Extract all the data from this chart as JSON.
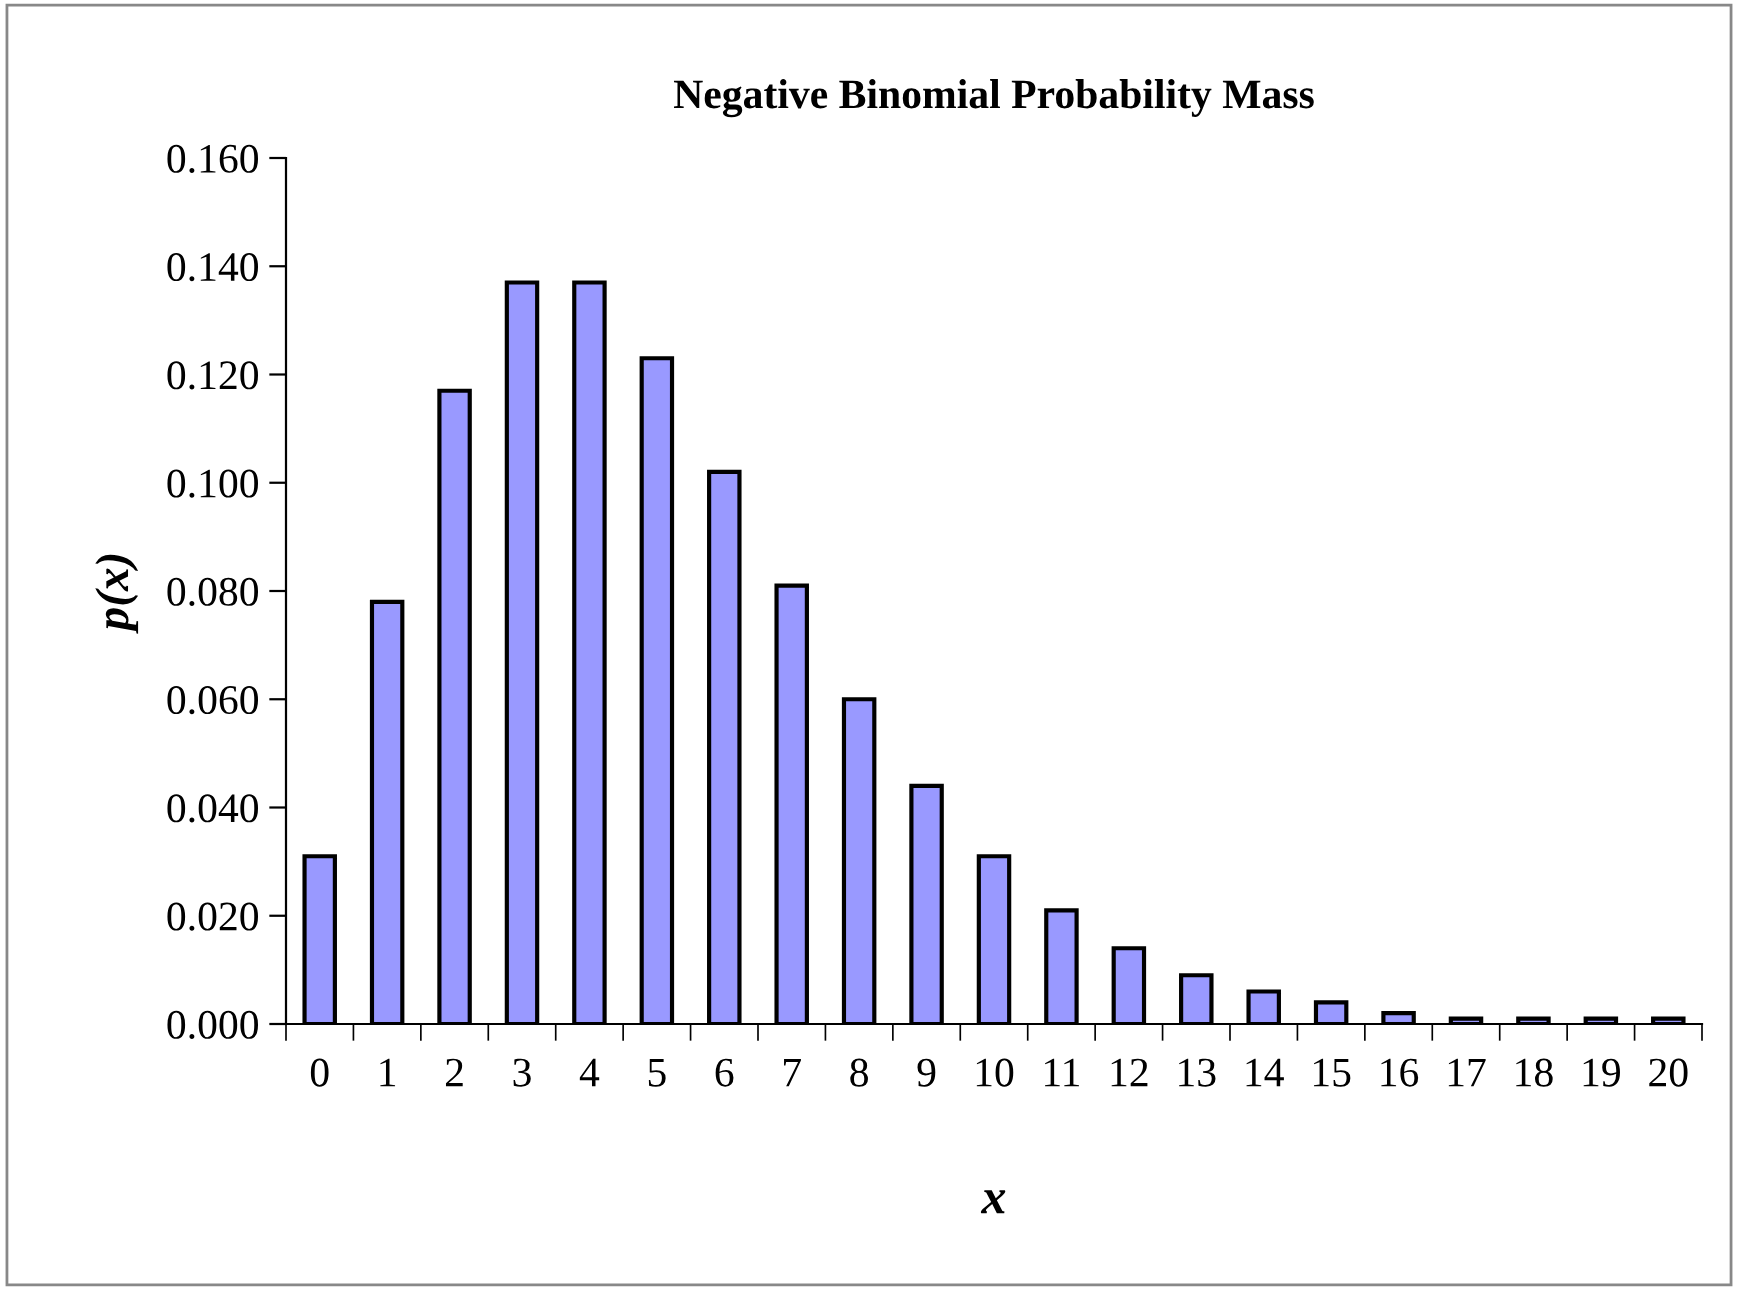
{
  "chart_data": {
    "type": "bar",
    "title": "Negative Binomial Probability Mass",
    "xlabel": "x",
    "ylabel": "p(x)",
    "categories": [
      "0",
      "1",
      "2",
      "3",
      "4",
      "5",
      "6",
      "7",
      "8",
      "9",
      "10",
      "11",
      "12",
      "13",
      "14",
      "15",
      "16",
      "17",
      "18",
      "19",
      "20"
    ],
    "values": [
      0.031,
      0.078,
      0.117,
      0.137,
      0.137,
      0.123,
      0.102,
      0.081,
      0.06,
      0.044,
      0.031,
      0.021,
      0.014,
      0.009,
      0.006,
      0.004,
      0.002,
      0.001,
      0.001,
      0.001,
      0.001
    ],
    "color": "#9999ff",
    "ylim": [
      0,
      0.16
    ],
    "yticks": [
      {
        "value": 0,
        "label": "0.000"
      },
      {
        "value": 0.02,
        "label": "0.020"
      },
      {
        "value": 0.04,
        "label": "0.040"
      },
      {
        "value": 0.06,
        "label": "0.060"
      },
      {
        "value": 0.08,
        "label": "0.080"
      },
      {
        "value": 0.1,
        "label": "0.100"
      },
      {
        "value": 0.12,
        "label": "0.120"
      },
      {
        "value": 0.14,
        "label": "0.140"
      },
      {
        "value": 0.16,
        "label": "0.160"
      }
    ],
    "grid": false,
    "legend": false
  }
}
